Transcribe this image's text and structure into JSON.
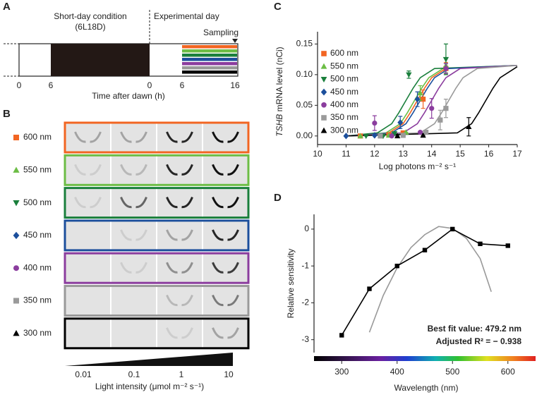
{
  "panel_letters": [
    "A",
    "B",
    "C",
    "D"
  ],
  "panel_a": {
    "condition": "Short-day condition",
    "condition_code": "(6L18D)",
    "experimental": "Experimental day",
    "sampling": "Sampling",
    "ticks": [
      "0",
      "6",
      "0",
      "6",
      "16"
    ],
    "axis_label": "Time after dawn (h)",
    "stripe_colors": [
      "#f26522",
      "#6cbd45",
      "#1a7f3c",
      "#1c4f9c",
      "#8b3d9e",
      "#9a9a9a",
      "#000000"
    ]
  },
  "panel_b": {
    "rows": [
      {
        "label": "600 nm",
        "color": "#f26522",
        "marker": "square"
      },
      {
        "label": "550 nm",
        "color": "#6cbd45",
        "marker": "triangle-up"
      },
      {
        "label": "500 nm",
        "color": "#1a7f3c",
        "marker": "triangle-down"
      },
      {
        "label": "450 nm",
        "color": "#1c4f9c",
        "marker": "diamond"
      },
      {
        "label": "400 nm",
        "color": "#8b3d9e",
        "marker": "circle"
      },
      {
        "label": "350 nm",
        "color": "#9a9a9a",
        "marker": "square"
      },
      {
        "label": "300 nm",
        "color": "#000000",
        "marker": "triangle-up"
      }
    ],
    "intensity_labels": [
      "0.01",
      "0.1",
      "1",
      "10"
    ],
    "axis_label": "Light intensity (μmol m⁻² s⁻¹)"
  },
  "chart_data": [
    {
      "type": "dose-response",
      "y_label_italic": "TSHB",
      "y_label": " mRNA level (nCi)",
      "x_label": "Log photons m⁻² s⁻¹",
      "xlim": [
        10,
        17
      ],
      "xticks": [
        10,
        11,
        12,
        13,
        14,
        15,
        16,
        17
      ],
      "ylim": [
        -0.014,
        0.17
      ],
      "yticks": [
        {
          "value": 0,
          "label": "0.00"
        },
        {
          "value": 0.05,
          "label": "0.05"
        },
        {
          "value": 0.1,
          "label": "0.10"
        },
        {
          "value": 0.15,
          "label": "0.15"
        }
      ],
      "series": [
        {
          "name": "600 nm",
          "color": "#f26522",
          "marker": "square",
          "x": [
            11.5,
            12.5,
            13.0,
            13.7,
            14.5
          ],
          "values": [
            0,
            0.002,
            0.005,
            0.06,
            0.11
          ],
          "errors": [
            0,
            0,
            0,
            0.015,
            0.01
          ],
          "curve_x": [
            11,
            12.5,
            13,
            13.25,
            13.5,
            13.75,
            14,
            14.5,
            17
          ],
          "curve_values": [
            0,
            0.005,
            0.02,
            0.038,
            0.058,
            0.078,
            0.095,
            0.11,
            0.115
          ]
        },
        {
          "name": "550 nm",
          "color": "#6cbd45",
          "marker": "triangle-up",
          "x": [
            11.5,
            12.5,
            13.1,
            13.6,
            14.5
          ],
          "values": [
            0,
            0.001,
            0.006,
            0.07,
            0.115
          ],
          "errors": [
            0,
            0,
            0,
            0.012,
            0.012
          ],
          "curve_x": [
            11,
            12.4,
            12.9,
            13.15,
            13.4,
            13.65,
            13.9,
            14.4,
            17
          ],
          "curve_values": [
            0,
            0.005,
            0.02,
            0.038,
            0.058,
            0.078,
            0.095,
            0.11,
            0.115
          ]
        },
        {
          "name": "500 nm",
          "color": "#1a7f3c",
          "marker": "triangle-down",
          "x": [
            11.7,
            12.3,
            12.7,
            13.2,
            14.5
          ],
          "values": [
            0,
            0,
            0.004,
            0.1,
            0.125
          ],
          "errors": [
            0,
            0,
            0,
            0.006,
            0.025
          ],
          "curve_x": [
            11,
            12.1,
            12.6,
            12.85,
            13.1,
            13.35,
            13.6,
            14.1,
            17
          ],
          "curve_values": [
            0,
            0.005,
            0.02,
            0.038,
            0.058,
            0.078,
            0.095,
            0.11,
            0.115
          ]
        },
        {
          "name": "450 nm",
          "color": "#1c4f9c",
          "marker": "diamond",
          "x": [
            11.0,
            12.0,
            12.9,
            13.5,
            14.5
          ],
          "values": [
            0,
            0.001,
            0.022,
            0.06,
            0.11
          ],
          "errors": [
            0,
            0,
            0.01,
            0.012,
            0.008
          ],
          "curve_x": [
            11,
            12.6,
            13.1,
            13.35,
            13.6,
            13.85,
            14.1,
            14.6,
            17
          ],
          "curve_values": [
            0,
            0.005,
            0.02,
            0.038,
            0.058,
            0.078,
            0.095,
            0.11,
            0.115
          ]
        },
        {
          "name": "400 nm",
          "color": "#8b3d9e",
          "marker": "circle",
          "x": [
            12.0,
            12.6,
            13.6,
            14.0,
            14.5
          ],
          "values": [
            0.021,
            0,
            0.006,
            0.045,
            0.11
          ],
          "errors": [
            0.012,
            0,
            0,
            0.016,
            0.008
          ],
          "curve_x": [
            11,
            13,
            13.5,
            13.75,
            14,
            14.25,
            14.5,
            15,
            17
          ],
          "curve_values": [
            0,
            0.005,
            0.02,
            0.038,
            0.058,
            0.078,
            0.095,
            0.11,
            0.115
          ]
        },
        {
          "name": "350 nm",
          "color": "#9a9a9a",
          "marker": "square",
          "x": [
            12.2,
            13.0,
            13.8,
            14.3,
            14.5
          ],
          "values": [
            0,
            0.001,
            0.006,
            0.026,
            0.045
          ],
          "errors": [
            0,
            0,
            0,
            0.016,
            0.015
          ],
          "curve_x": [
            11,
            13.6,
            14.1,
            14.35,
            14.6,
            14.85,
            15.1,
            15.6,
            17
          ],
          "curve_values": [
            0,
            0.005,
            0.02,
            0.038,
            0.058,
            0.078,
            0.095,
            0.11,
            0.115
          ]
        },
        {
          "name": "300 nm",
          "color": "#000000",
          "marker": "triangle-up",
          "x": [
            12.8,
            13.7,
            15.3
          ],
          "values": [
            0,
            0.001,
            0.015
          ],
          "errors": [
            0,
            0,
            0.015
          ],
          "curve_x": [
            11,
            14.9,
            15.4,
            15.65,
            15.9,
            16.15,
            16.4,
            16.9,
            17
          ],
          "curve_values": [
            0,
            0.005,
            0.02,
            0.038,
            0.058,
            0.078,
            0.095,
            0.11,
            0.113
          ]
        }
      ]
    },
    {
      "type": "line",
      "y_label": "Relative sensitivity",
      "x_label": "Wavelength (nm)",
      "xlim": [
        250,
        650
      ],
      "xticks": [
        300,
        400,
        500,
        600
      ],
      "ylim": [
        -3.35,
        0.4
      ],
      "yticks": [
        0,
        -1,
        -2,
        -3
      ],
      "annotations": [
        "Best fit value: 479.2 nm",
        "Adjusted R² = − 0.938"
      ],
      "series": [
        {
          "color": "#999999",
          "x": [
            350,
            375,
            400,
            425,
            450,
            475,
            500,
            525,
            550,
            570
          ],
          "values": [
            -2.8,
            -1.8,
            -1.05,
            -0.5,
            -0.15,
            0.07,
            0.02,
            -0.25,
            -0.8,
            -1.7
          ]
        },
        {
          "color": "#000000",
          "marker": "square",
          "x": [
            300,
            350,
            400,
            450,
            500,
            550,
            600
          ],
          "values": [
            -2.88,
            -1.62,
            -1.0,
            -0.57,
            0,
            -0.4,
            -0.45
          ]
        }
      ]
    }
  ]
}
